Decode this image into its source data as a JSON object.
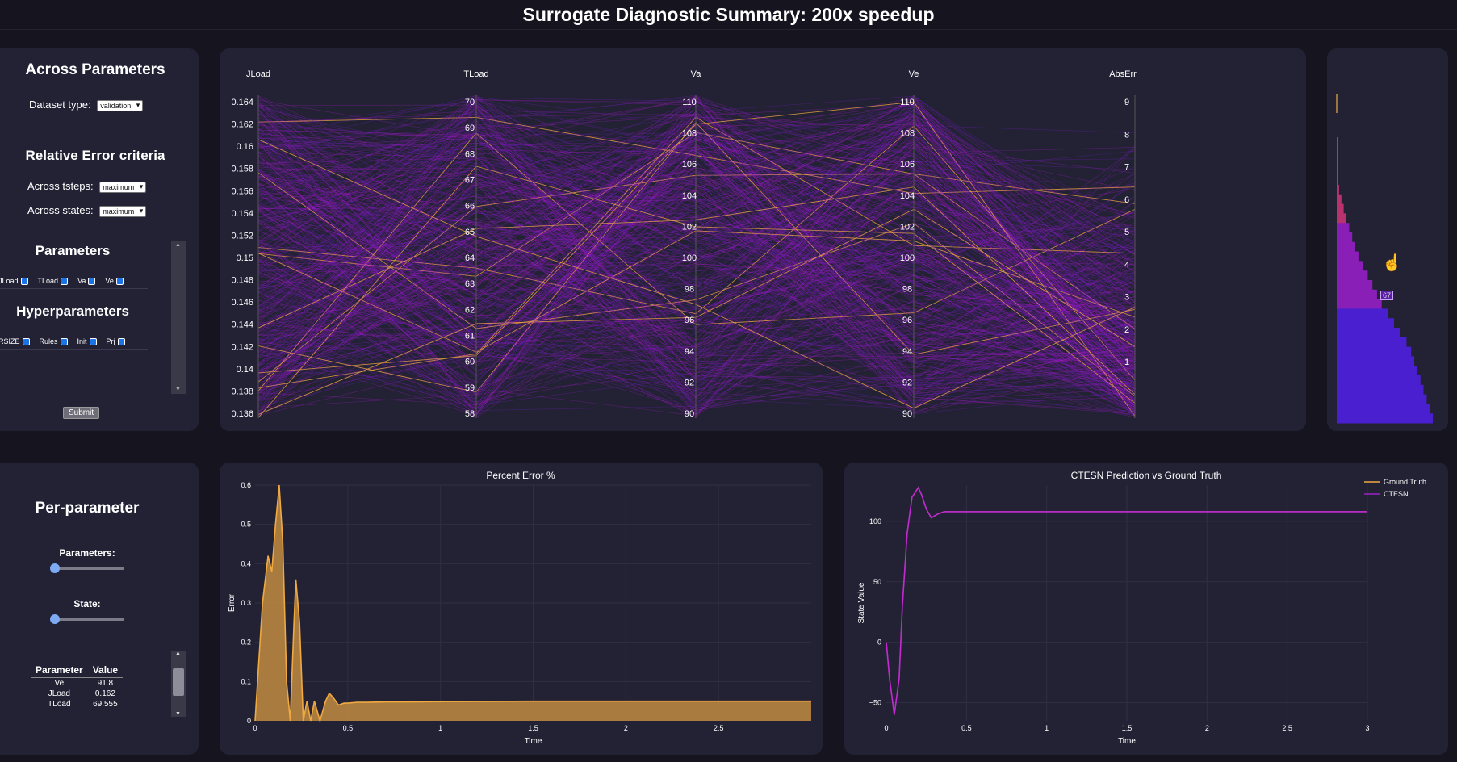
{
  "header": {
    "title": "Surrogate Diagnostic Summary: 200x speedup"
  },
  "left_panel": {
    "across_title": "Across Parameters",
    "dataset_label": "Dataset type:",
    "dataset_value": "validation",
    "criteria_title": "Relative Error criteria",
    "tsteps_label": "Across tsteps:",
    "tsteps_value": "maximum",
    "states_label": "Across states:",
    "states_value": "maximum",
    "parameters_title": "Parameters",
    "parameters": [
      "JLoad",
      "TLoad",
      "Va",
      "Ve"
    ],
    "hyper_title": "Hyperparameters",
    "hyperparameters": [
      "RSIZE",
      "Rules",
      "Init",
      "Prj"
    ],
    "submit_label": "Submit"
  },
  "per_param_panel": {
    "title": "Per-parameter",
    "parameters_label": "Parameters:",
    "parameters_slider": 0,
    "state_label": "State:",
    "state_slider": 0,
    "table": {
      "headers": [
        "Parameter",
        "Value"
      ],
      "rows": [
        {
          "param": "Ve",
          "value": "91.8"
        },
        {
          "param": "JLoad",
          "value": "0.162"
        },
        {
          "param": "TLoad",
          "value": "69.555"
        }
      ]
    }
  },
  "parallel": {
    "axes": [
      {
        "name": "JLoad",
        "ticks": [
          "0.164",
          "0.162",
          "0.16",
          "0.158",
          "0.156",
          "0.154",
          "0.152",
          "0.15",
          "0.148",
          "0.146",
          "0.144",
          "0.142",
          "0.14",
          "0.138",
          "0.136"
        ]
      },
      {
        "name": "TLoad",
        "ticks": [
          "70",
          "69",
          "68",
          "67",
          "66",
          "65",
          "64",
          "63",
          "62",
          "61",
          "60",
          "59",
          "58"
        ]
      },
      {
        "name": "Va",
        "ticks": [
          "110",
          "108",
          "106",
          "104",
          "102",
          "100",
          "98",
          "96",
          "94",
          "92",
          "90"
        ]
      },
      {
        "name": "Ve",
        "ticks": [
          "110",
          "108",
          "106",
          "104",
          "102",
          "100",
          "98",
          "96",
          "94",
          "92",
          "90"
        ]
      },
      {
        "name": "AbsErr",
        "ticks": [
          "9",
          "8",
          "7",
          "6",
          "5",
          "4",
          "3",
          "2",
          "1"
        ]
      }
    ]
  },
  "histogram": {
    "hover_label": "67"
  },
  "colors": {
    "accent": "#f0a940",
    "line_purple": "#a020c8",
    "hist": "#6a1fc0"
  },
  "chart_data": [
    {
      "type": "area",
      "title": "Percent Error %",
      "xlabel": "Time",
      "ylabel": "Error",
      "xlim": [
        0,
        3
      ],
      "ylim": [
        0,
        0.6
      ],
      "xticks": [
        "0",
        "0.5",
        "1",
        "1.5",
        "2",
        "2.5"
      ],
      "yticks": [
        "0",
        "0.1",
        "0.2",
        "0.3",
        "0.4",
        "0.5",
        "0.6"
      ],
      "x": [
        0,
        0.04,
        0.07,
        0.09,
        0.11,
        0.13,
        0.15,
        0.17,
        0.19,
        0.21,
        0.22,
        0.24,
        0.26,
        0.28,
        0.3,
        0.32,
        0.35,
        0.38,
        0.4,
        0.42,
        0.45,
        0.48,
        0.5,
        0.55,
        0.6,
        0.7,
        0.8,
        1.0,
        1.5,
        2.0,
        2.5,
        3.0
      ],
      "values": [
        0,
        0.3,
        0.42,
        0.38,
        0.5,
        0.6,
        0.45,
        0.1,
        0.0,
        0.25,
        0.36,
        0.25,
        0.0,
        0.05,
        0.0,
        0.05,
        0.0,
        0.05,
        0.07,
        0.06,
        0.04,
        0.045,
        0.045,
        0.047,
        0.047,
        0.048,
        0.048,
        0.049,
        0.05,
        0.05,
        0.05,
        0.05
      ]
    },
    {
      "type": "line",
      "title": "CTESN Prediction vs Ground Truth",
      "xlabel": "Time",
      "ylabel": "State Value",
      "xlim": [
        0,
        3
      ],
      "ylim": [
        -65,
        130
      ],
      "xticks": [
        "0",
        "0.5",
        "1",
        "1.5",
        "2",
        "2.5",
        "3"
      ],
      "yticks": [
        "−50",
        "0",
        "50",
        "100"
      ],
      "legend": [
        "Ground Truth",
        "CTESN"
      ],
      "series": [
        {
          "name": "Ground Truth",
          "x": [
            0,
            0.02,
            0.05,
            0.08,
            0.1,
            0.13,
            0.16,
            0.2,
            0.22,
            0.25,
            0.28,
            0.32,
            0.36,
            0.4,
            0.5,
            1,
            2,
            3
          ],
          "values": [
            0,
            -30,
            -60,
            -30,
            30,
            90,
            120,
            128,
            122,
            110,
            103,
            106,
            108,
            108,
            108,
            108,
            108,
            108
          ]
        },
        {
          "name": "CTESN",
          "x": [
            0,
            0.02,
            0.05,
            0.08,
            0.1,
            0.13,
            0.16,
            0.2,
            0.22,
            0.25,
            0.28,
            0.32,
            0.36,
            0.4,
            0.5,
            1,
            2,
            3
          ],
          "values": [
            0,
            -30,
            -60,
            -30,
            30,
            90,
            120,
            128,
            122,
            110,
            103,
            106,
            108,
            108,
            108,
            108,
            108,
            108
          ]
        }
      ]
    }
  ]
}
